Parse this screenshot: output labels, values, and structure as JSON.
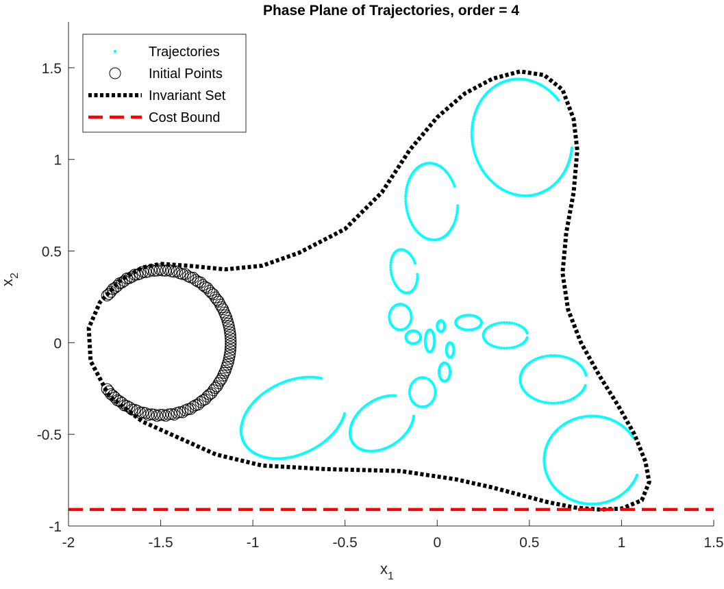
{
  "chart_data": {
    "type": "scatter",
    "title": "Phase Plane of Trajectories, order = 4",
    "xlabel": {
      "base": "x",
      "sub": "1"
    },
    "ylabel": {
      "base": "x",
      "sub": "2"
    },
    "xlim": [
      -2,
      1.5
    ],
    "ylim": [
      -1,
      1.75
    ],
    "xticks": [
      -2,
      -1.5,
      -1,
      -0.5,
      0,
      0.5,
      1,
      1.5
    ],
    "xtick_labels": [
      "-2",
      "-1.5",
      "-1",
      "-0.5",
      "0",
      "0.5",
      "1",
      "1.5"
    ],
    "yticks": [
      -1,
      -0.5,
      0,
      0.5,
      1,
      1.5
    ],
    "ytick_labels": [
      "-1",
      "-0.5",
      "0",
      "0.5",
      "1",
      "1.5"
    ],
    "grid": false,
    "legend_position": "top-left",
    "series": [
      {
        "name": "Trajectories",
        "kind": "cyan-dots",
        "color": "#00FFFF",
        "loops": [
          {
            "cx": 0.46,
            "cy": 1.12,
            "rx": 0.27,
            "ry": 0.32,
            "rot": 0.2,
            "start": 30,
            "end": 340
          },
          {
            "cx": -0.03,
            "cy": 0.77,
            "rx": 0.14,
            "ry": 0.21,
            "rot": 0.1,
            "start": 20,
            "end": 350
          },
          {
            "cx": -0.18,
            "cy": 0.39,
            "rx": 0.07,
            "ry": 0.12,
            "rot": 0.2,
            "start": 15,
            "end": 345
          },
          {
            "cx": -0.2,
            "cy": 0.14,
            "rx": 0.06,
            "ry": 0.07,
            "rot": 0.0,
            "start": 0,
            "end": 360
          },
          {
            "cx": -0.13,
            "cy": 0.03,
            "rx": 0.04,
            "ry": 0.035,
            "rot": 0.0,
            "start": 0,
            "end": 360
          },
          {
            "cx": -0.04,
            "cy": 0.01,
            "rx": 0.025,
            "ry": 0.06,
            "rot": 0.0,
            "start": 0,
            "end": 360
          },
          {
            "cx": 0.02,
            "cy": 0.09,
            "rx": 0.02,
            "ry": 0.03,
            "rot": 0.0,
            "start": 0,
            "end": 360
          },
          {
            "cx": 0.07,
            "cy": -0.04,
            "rx": 0.02,
            "ry": 0.04,
            "rot": 0.0,
            "start": 0,
            "end": 360
          },
          {
            "cx": 0.04,
            "cy": -0.16,
            "rx": 0.03,
            "ry": 0.05,
            "rot": 0.0,
            "start": 0,
            "end": 360
          },
          {
            "cx": 0.17,
            "cy": 0.11,
            "rx": 0.07,
            "ry": 0.04,
            "rot": 0.0,
            "start": 0,
            "end": 360
          },
          {
            "cx": -0.08,
            "cy": -0.27,
            "rx": 0.07,
            "ry": 0.08,
            "rot": 0.0,
            "start": 0,
            "end": 360
          },
          {
            "cx": -0.3,
            "cy": -0.44,
            "rx": 0.19,
            "ry": 0.13,
            "rot": 0.6,
            "start": 40,
            "end": 330
          },
          {
            "cx": 0.37,
            "cy": 0.04,
            "rx": 0.12,
            "ry": 0.07,
            "rot": 0.0,
            "start": 10,
            "end": 350
          },
          {
            "cx": 0.63,
            "cy": -0.2,
            "rx": 0.18,
            "ry": 0.13,
            "rot": 0.0,
            "start": 10,
            "end": 345
          },
          {
            "cx": -0.78,
            "cy": -0.41,
            "rx": 0.3,
            "ry": 0.2,
            "rot": 0.45,
            "start": 40,
            "end": 330
          },
          {
            "cx": 0.84,
            "cy": -0.64,
            "rx": 0.26,
            "ry": 0.24,
            "rot": 0.0,
            "start": 30,
            "end": 340
          }
        ]
      },
      {
        "name": "Initial Points",
        "kind": "black-open-circles",
        "color": "#000000",
        "circle": {
          "cx": -1.5,
          "cy": 0.0,
          "r": 0.4
        }
      },
      {
        "name": "Invariant Set",
        "kind": "black-dotted-line",
        "color": "#000000",
        "points": [
          [
            -1.5,
            0.43
          ],
          [
            -1.35,
            0.42
          ],
          [
            -1.15,
            0.4
          ],
          [
            -0.95,
            0.42
          ],
          [
            -0.75,
            0.49
          ],
          [
            -0.5,
            0.62
          ],
          [
            -0.3,
            0.82
          ],
          [
            -0.15,
            1.05
          ],
          [
            0.0,
            1.23
          ],
          [
            0.15,
            1.36
          ],
          [
            0.3,
            1.44
          ],
          [
            0.45,
            1.48
          ],
          [
            0.58,
            1.46
          ],
          [
            0.68,
            1.38
          ],
          [
            0.74,
            1.22
          ],
          [
            0.76,
            1.05
          ],
          [
            0.74,
            0.82
          ],
          [
            0.7,
            0.6
          ],
          [
            0.68,
            0.38
          ],
          [
            0.71,
            0.18
          ],
          [
            0.78,
            0.0
          ],
          [
            0.88,
            -0.18
          ],
          [
            0.98,
            -0.34
          ],
          [
            1.07,
            -0.5
          ],
          [
            1.13,
            -0.65
          ],
          [
            1.15,
            -0.76
          ],
          [
            1.11,
            -0.86
          ],
          [
            1.0,
            -0.905
          ],
          [
            0.88,
            -0.91
          ],
          [
            0.75,
            -0.9
          ],
          [
            0.6,
            -0.87
          ],
          [
            0.45,
            -0.83
          ],
          [
            0.3,
            -0.79
          ],
          [
            0.1,
            -0.745
          ],
          [
            -0.2,
            -0.7
          ],
          [
            -0.6,
            -0.69
          ],
          [
            -0.95,
            -0.67
          ],
          [
            -1.2,
            -0.61
          ],
          [
            -1.4,
            -0.52
          ],
          [
            -1.6,
            -0.43
          ],
          [
            -1.78,
            -0.29
          ],
          [
            -1.88,
            -0.1
          ],
          [
            -1.89,
            0.08
          ],
          [
            -1.83,
            0.22
          ],
          [
            -1.72,
            0.34
          ],
          [
            -1.6,
            0.41
          ],
          [
            -1.5,
            0.43
          ]
        ]
      },
      {
        "name": "Cost Bound",
        "kind": "red-dashed-line",
        "color": "#FF0000",
        "y": -0.91
      }
    ]
  }
}
